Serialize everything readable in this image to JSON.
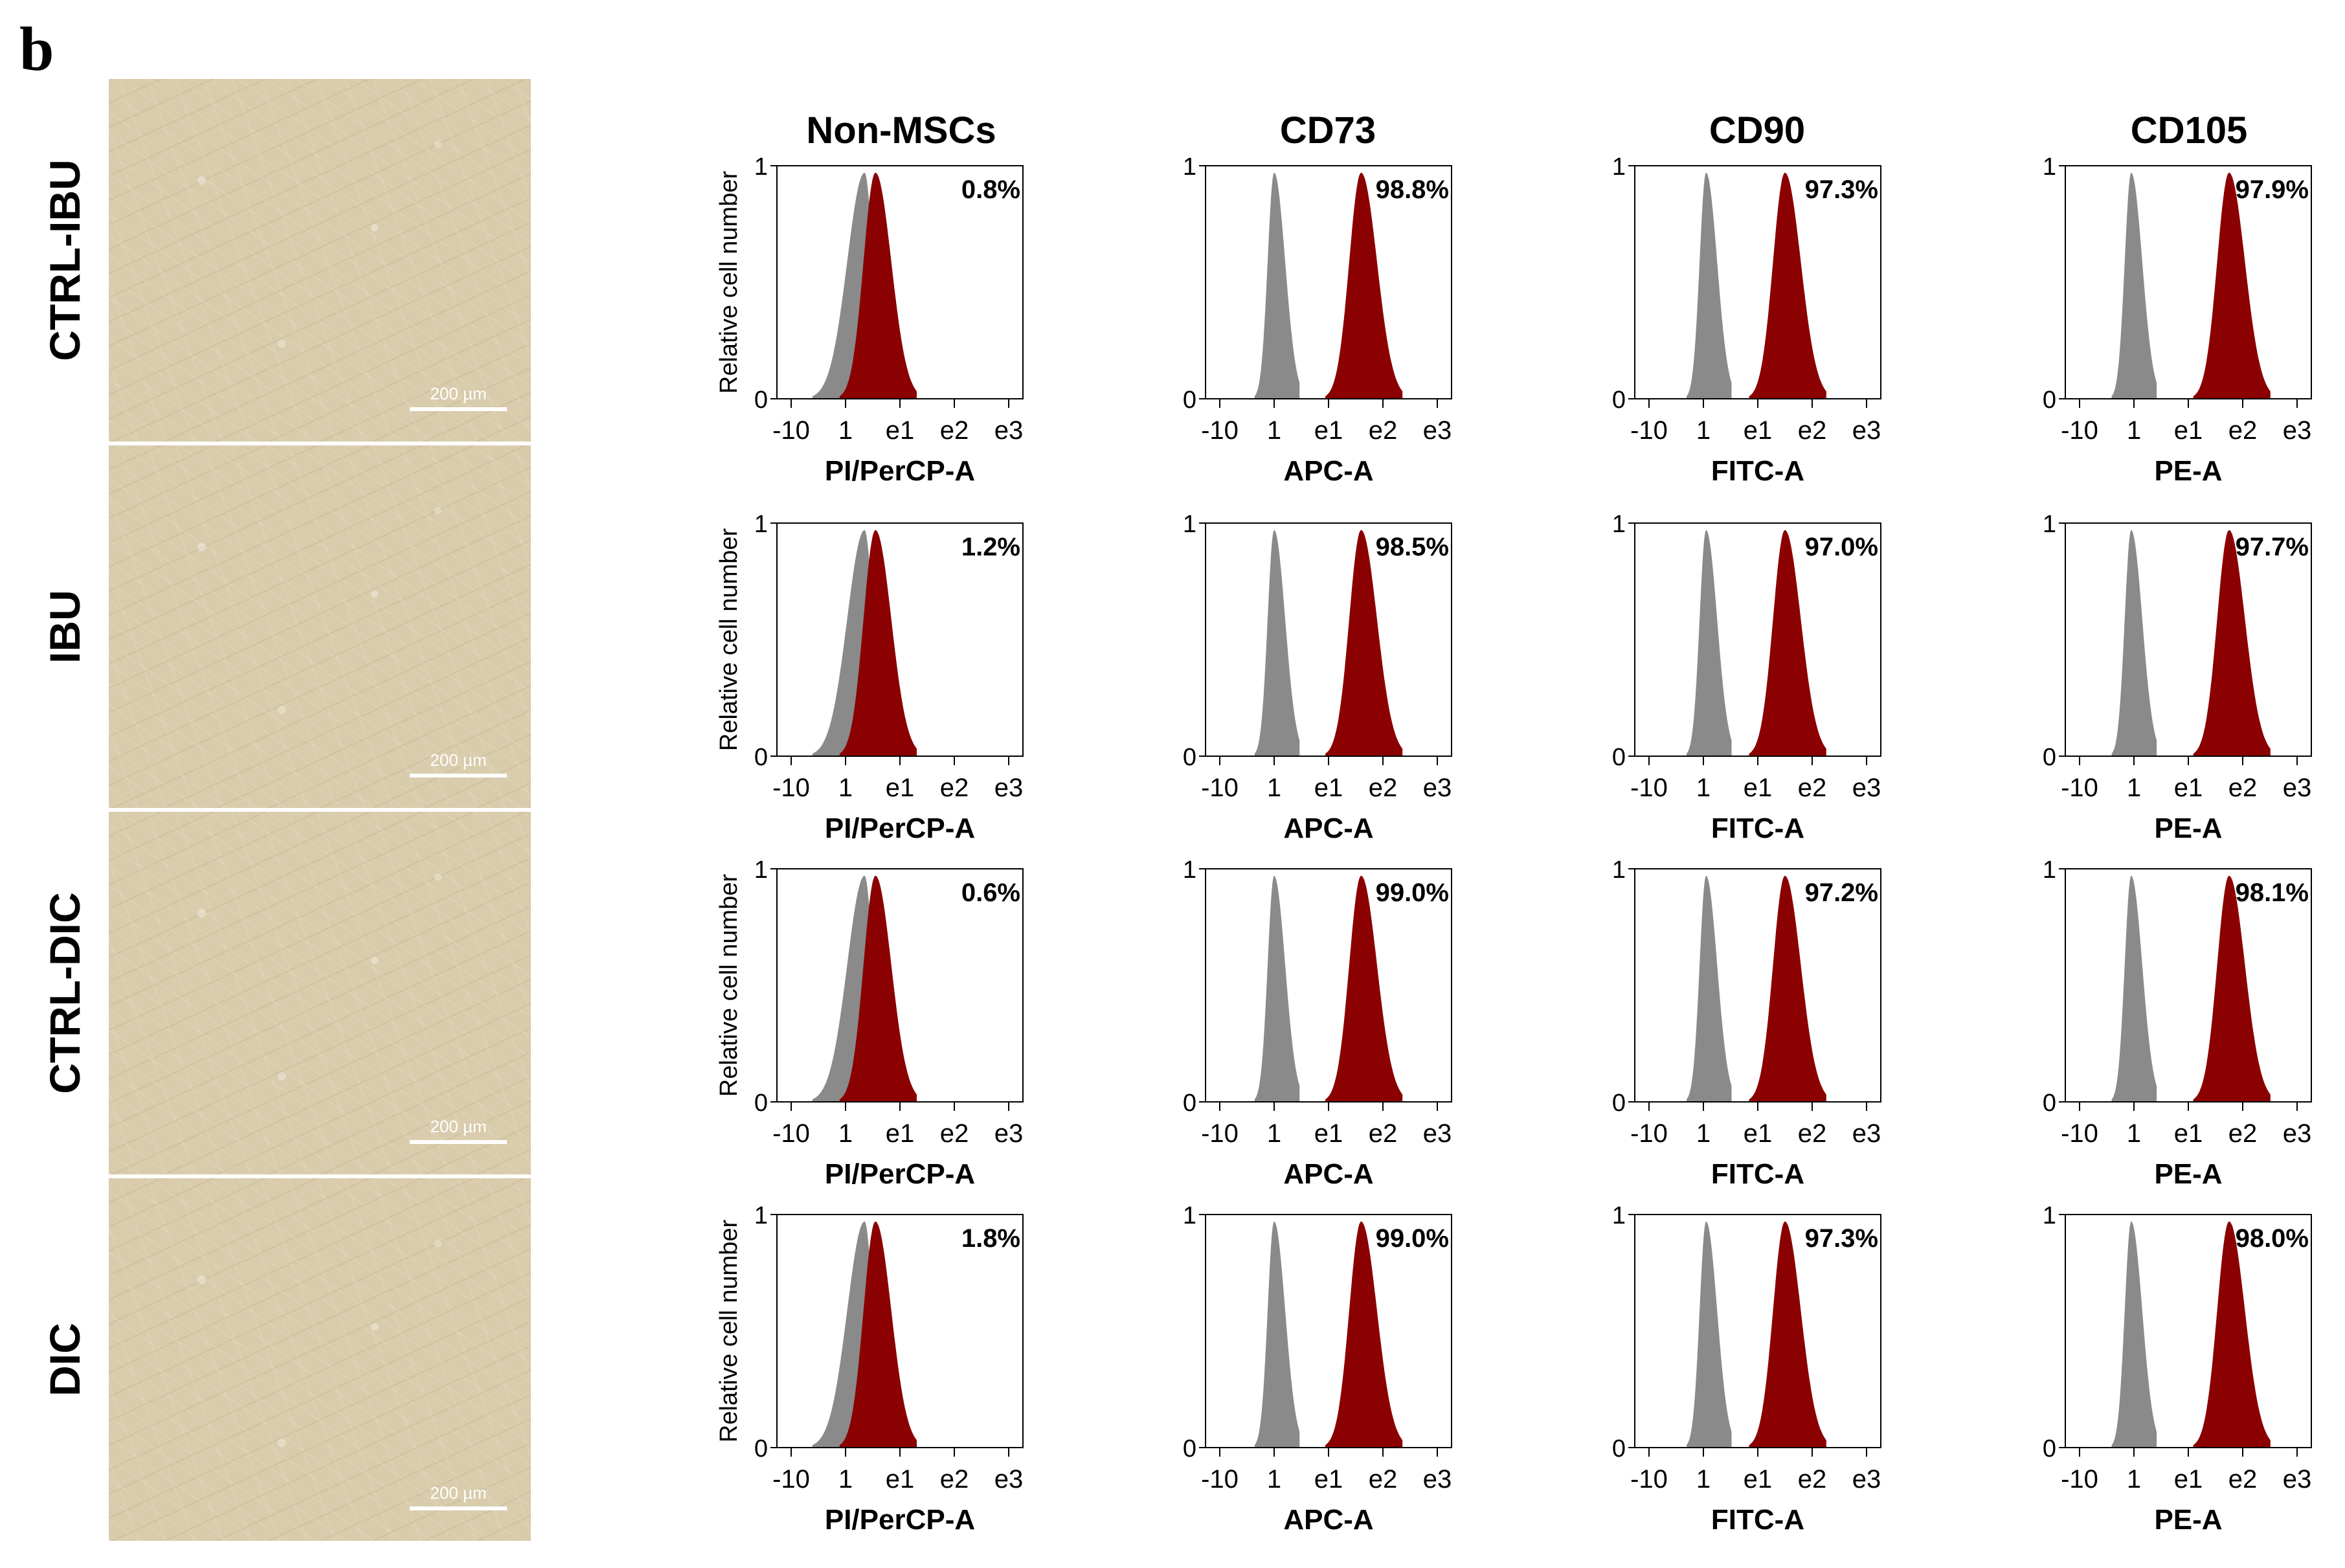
{
  "panel_letter": "b",
  "row_labels": [
    "CTRL-IBU",
    "IBU",
    "CTRL-DIC",
    "DIC"
  ],
  "scale_bar_label": "200 µm",
  "column_titles": [
    "Non-MSCs",
    "CD73",
    "CD90",
    "CD105"
  ],
  "colors": {
    "negative": "#8a8a8a",
    "positive": "#8b0000",
    "axis": "#000000"
  },
  "chart_data": {
    "type": "histogram-grid",
    "ylabel": "Relative cell number",
    "y_ticks": [
      "0",
      "1"
    ],
    "x_scale": "logicle",
    "x_range": [
      -10,
      3000
    ],
    "columns": [
      {
        "title": "Non-MSCs",
        "xlabel": "PI/PerCP-A",
        "x_ticks": [
          "-10",
          "1",
          "e1",
          "e2",
          "e3"
        ],
        "negative_peak_log10": 0.35,
        "positive_peak_log10": 0.55
      },
      {
        "title": "CD73",
        "xlabel": "APC-A",
        "x_ticks": [
          "-10",
          "1",
          "e1",
          "e2",
          "e3"
        ],
        "negative_peak_log10": 0.0,
        "positive_peak_log10": 1.6
      },
      {
        "title": "CD90",
        "xlabel": "FITC-A",
        "x_ticks": [
          "-10",
          "1",
          "e1",
          "e2",
          "e3"
        ],
        "negative_peak_log10": 0.05,
        "positive_peak_log10": 1.5
      },
      {
        "title": "CD105",
        "xlabel": "PE-A",
        "x_ticks": [
          "-10",
          "1",
          "e1",
          "e2",
          "e3"
        ],
        "negative_peak_log10": -0.05,
        "positive_peak_log10": 1.75
      }
    ],
    "percentages": [
      [
        "0.8%",
        "98.8%",
        "97.3%",
        "97.9%"
      ],
      [
        "1.2%",
        "98.5%",
        "97.0%",
        "97.7%"
      ],
      [
        "0.6%",
        "99.0%",
        "97.2%",
        "98.1%"
      ],
      [
        "1.8%",
        "99.0%",
        "97.3%",
        "98.0%"
      ]
    ]
  }
}
